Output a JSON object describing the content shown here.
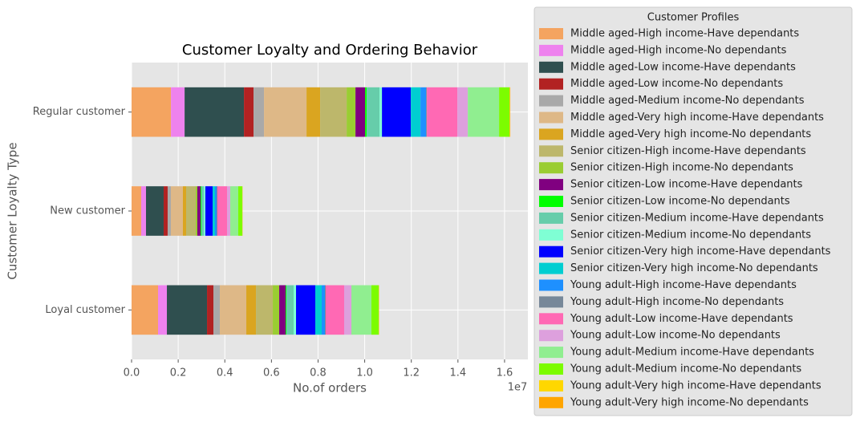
{
  "chart_data": {
    "type": "barh_stacked",
    "title": "Customer Loyalty and Ordering Behavior",
    "xlabel": "No.of orders",
    "ylabel": "Customer Loyalty Type",
    "x_offset_label": "1e7",
    "legend_title": "Customer Profiles",
    "legend_position": "outside-right",
    "grid": true,
    "categories": [
      "Loyal customer",
      "New customer",
      "Regular customer"
    ],
    "xlim": [
      0,
      17000000
    ],
    "xticks": [
      {
        "value": 0,
        "label": "0.0"
      },
      {
        "value": 2000000,
        "label": "0.2"
      },
      {
        "value": 4000000,
        "label": "0.4"
      },
      {
        "value": 6000000,
        "label": "0.6"
      },
      {
        "value": 8000000,
        "label": "0.8"
      },
      {
        "value": 10000000,
        "label": "1.0"
      },
      {
        "value": 12000000,
        "label": "1.2"
      },
      {
        "value": 14000000,
        "label": "1.4"
      },
      {
        "value": 16000000,
        "label": "1.6"
      }
    ],
    "series": [
      {
        "name": "Middle aged-High income-Have dependants",
        "color": "#f4a460",
        "values": [
          1136000,
          413000,
          1690000
        ]
      },
      {
        "name": "Middle aged-High income-No dependants",
        "color": "#ee82ee",
        "values": [
          379000,
          206000,
          585000
        ]
      },
      {
        "name": "Middle aged-Low income-Have dependants",
        "color": "#2f4f4f",
        "values": [
          1721000,
          757000,
          2546000
        ]
      },
      {
        "name": "Middle aged-Low income-No dependants",
        "color": "#b22222",
        "values": [
          275000,
          172000,
          413000
        ]
      },
      {
        "name": "Middle aged-Medium income-No dependants",
        "color": "#a9a9a9",
        "values": [
          275000,
          138000,
          447000
        ]
      },
      {
        "name": "Middle aged-Very high income-Have dependants",
        "color": "#deb887",
        "values": [
          1136000,
          516000,
          1824000
        ]
      },
      {
        "name": "Middle aged-Very high income-No dependants",
        "color": "#daa520",
        "values": [
          413000,
          138000,
          585000
        ]
      },
      {
        "name": "Senior citizen-High income-Have dependants",
        "color": "#bdb76b",
        "values": [
          723000,
          413000,
          1136000
        ]
      },
      {
        "name": "Senior citizen-High income-No dependants",
        "color": "#9acd32",
        "values": [
          275000,
          69000,
          379000
        ]
      },
      {
        "name": "Senior citizen-Low income-Have dependants",
        "color": "#800080",
        "values": [
          275000,
          138000,
          413000
        ]
      },
      {
        "name": "Senior citizen-Low income-No dependants",
        "color": "#00ff00",
        "values": [
          34000,
          34000,
          69000
        ]
      },
      {
        "name": "Senior citizen-Medium income-Have dependants",
        "color": "#66cdaa",
        "values": [
          310000,
          103000,
          551000
        ]
      },
      {
        "name": "Senior citizen-Medium income-No dependants",
        "color": "#7fffd4",
        "values": [
          103000,
          69000,
          103000
        ]
      },
      {
        "name": "Senior citizen-Very high income-Have dependants",
        "color": "#0000ff",
        "values": [
          826000,
          310000,
          1239000
        ]
      },
      {
        "name": "Senior citizen-Very high income-No dependants",
        "color": "#00ced1",
        "values": [
          275000,
          103000,
          413000
        ]
      },
      {
        "name": "Young adult-High income-Have dependants",
        "color": "#1e90ff",
        "values": [
          138000,
          69000,
          241000
        ]
      },
      {
        "name": "Young adult-High income-No dependants",
        "color": "#778899",
        "values": [
          34000,
          34000,
          34000
        ]
      },
      {
        "name": "Young adult-Low income-Have dependants",
        "color": "#ff69b4",
        "values": [
          791000,
          413000,
          1308000
        ]
      },
      {
        "name": "Young adult-Low income-No dependants",
        "color": "#dda0dd",
        "values": [
          310000,
          138000,
          447000
        ]
      },
      {
        "name": "Young adult-Medium income-Have dependants",
        "color": "#90ee90",
        "values": [
          860000,
          344000,
          1342000
        ]
      },
      {
        "name": "Young adult-Medium income-No dependants",
        "color": "#7cfc00",
        "values": [
          310000,
          172000,
          447000
        ]
      },
      {
        "name": "Young adult-Very high income-Have dependants",
        "color": "#ffd700",
        "values": [
          10000,
          7000,
          17000
        ]
      },
      {
        "name": "Young adult-Very high income-No dependants",
        "color": "#ffa500",
        "values": [
          10000,
          7000,
          17000
        ]
      }
    ]
  }
}
